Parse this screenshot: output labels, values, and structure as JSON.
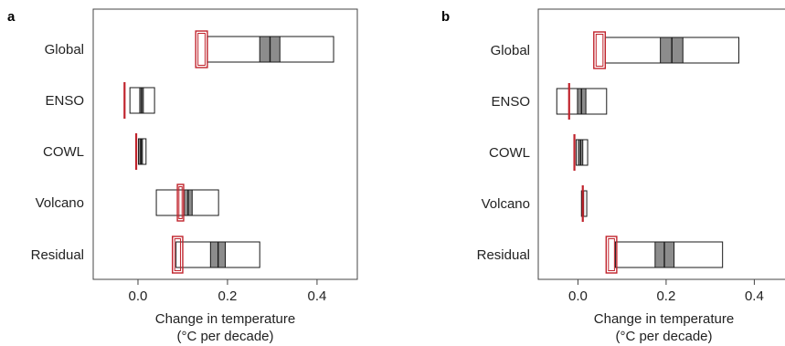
{
  "chart_data": [
    {
      "type": "box",
      "panel_label": "a",
      "categories": [
        "Global",
        "ENSO",
        "COWL",
        "Volcano",
        "Residual"
      ],
      "xlabel_line1": "Change in temperature",
      "xlabel_line2": "(°C per decade)",
      "xlim": [
        -0.1,
        0.49
      ],
      "xticks": [
        0.0,
        0.2,
        0.4
      ],
      "xtick_labels": [
        "0.0",
        "0.2",
        "0.4"
      ],
      "ranges": [
        {
          "category": "Global",
          "min": 0.155,
          "max": 0.437,
          "central_low": 0.272,
          "central_high": 0.317,
          "median": 0.295,
          "observed_low": 0.129,
          "observed_high": 0.155
        },
        {
          "category": "ENSO",
          "min": -0.018,
          "max": 0.037,
          "central_low": 0.004,
          "central_high": 0.012,
          "median": 0.008,
          "observed_low": -0.03,
          "observed_high": -0.03
        },
        {
          "category": "COWL",
          "min": 0.001,
          "max": 0.018,
          "central_low": 0.004,
          "central_high": 0.01,
          "median": 0.007,
          "observed_low": -0.004,
          "observed_high": -0.004
        },
        {
          "category": "Volcano",
          "min": 0.041,
          "max": 0.18,
          "central_low": 0.103,
          "central_high": 0.121,
          "median": 0.112,
          "observed_low": 0.088,
          "observed_high": 0.102
        },
        {
          "category": "Residual",
          "min": 0.085,
          "max": 0.272,
          "central_low": 0.162,
          "central_high": 0.195,
          "median": 0.179,
          "observed_low": 0.077,
          "observed_high": 0.1
        }
      ]
    },
    {
      "type": "box",
      "panel_label": "b",
      "categories": [
        "Global",
        "ENSO",
        "COWL",
        "Volcano",
        "Residual"
      ],
      "xlabel_line1": "Change in temperature",
      "xlabel_line2": "(°C per decade)",
      "xlim": [
        -0.09,
        0.48
      ],
      "xticks": [
        0.0,
        0.2,
        0.4
      ],
      "xtick_labels": [
        "0.0",
        "0.2",
        "0.4"
      ],
      "ranges": [
        {
          "category": "Global",
          "min": 0.062,
          "max": 0.365,
          "central_low": 0.187,
          "central_high": 0.238,
          "median": 0.213,
          "observed_low": 0.036,
          "observed_high": 0.062
        },
        {
          "category": "ENSO",
          "min": -0.048,
          "max": 0.065,
          "central_low": -0.001,
          "central_high": 0.018,
          "median": 0.008,
          "observed_low": -0.02,
          "observed_high": -0.02
        },
        {
          "category": "COWL",
          "min": -0.004,
          "max": 0.022,
          "central_low": 0.001,
          "central_high": 0.011,
          "median": 0.006,
          "observed_low": -0.008,
          "observed_high": -0.008
        },
        {
          "category": "Volcano",
          "min": 0.008,
          "max": 0.02,
          "central_low": 0.009,
          "central_high": 0.013,
          "median": 0.011,
          "observed_low": 0.011,
          "observed_high": 0.011
        },
        {
          "category": "Residual",
          "min": 0.085,
          "max": 0.328,
          "central_low": 0.175,
          "central_high": 0.218,
          "median": 0.196,
          "observed_low": 0.064,
          "observed_high": 0.088
        }
      ]
    }
  ],
  "colors": {
    "box_edge": "#1a1a1a",
    "central_fill": "#8c8c8c",
    "observed": "#c0232c",
    "axis": "#444444"
  }
}
